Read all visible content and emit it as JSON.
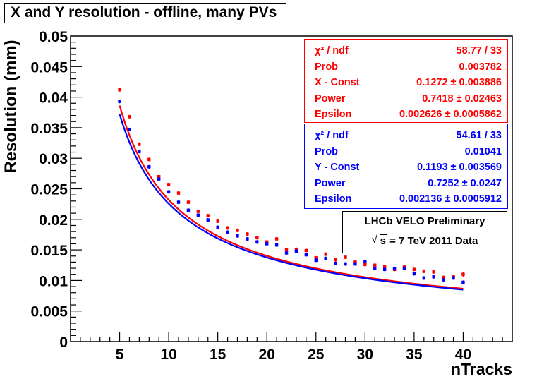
{
  "chart_data": {
    "type": "scatter",
    "title": "X and Y resolution - offline, many PVs",
    "xlabel": "nTracks",
    "ylabel": "Resolution (mm)",
    "xlim": [
      0,
      45
    ],
    "ylim": [
      0,
      0.05
    ],
    "x_ticks": [
      5,
      10,
      15,
      20,
      25,
      30,
      35,
      40
    ],
    "x_tick_labels": [
      "5",
      "10",
      "15",
      "20",
      "25",
      "30",
      "35",
      "40"
    ],
    "y_ticks": [
      0,
      0.005,
      0.01,
      0.015,
      0.02,
      0.025,
      0.03,
      0.035,
      0.04,
      0.045,
      0.05
    ],
    "y_tick_labels": [
      "0",
      "0.005",
      "0.01",
      "0.015",
      "0.02",
      "0.025",
      "0.03",
      "0.035",
      "0.04",
      "0.045",
      "0.05"
    ],
    "series": [
      {
        "name": "X",
        "color": "#ff0000",
        "x": [
          5,
          6,
          7,
          8,
          9,
          10,
          11,
          12,
          13,
          14,
          15,
          16,
          17,
          18,
          19,
          20,
          21,
          22,
          23,
          24,
          25,
          26,
          27,
          28,
          29,
          30,
          31,
          32,
          33,
          34,
          35,
          36,
          37,
          38,
          39,
          40
        ],
        "y": [
          0.0412,
          0.0368,
          0.0323,
          0.0298,
          0.027,
          0.0257,
          0.0243,
          0.0228,
          0.0213,
          0.0206,
          0.0197,
          0.0186,
          0.0182,
          0.0176,
          0.017,
          0.0163,
          0.0168,
          0.015,
          0.0151,
          0.0149,
          0.0137,
          0.0143,
          0.0134,
          0.0138,
          0.013,
          0.0126,
          0.0125,
          0.0123,
          0.0118,
          0.0122,
          0.0118,
          0.0115,
          0.0114,
          0.0105,
          0.0106,
          0.011
        ],
        "err": [
          0.0003,
          0.0003,
          0.0003,
          0.0003,
          0.0003,
          0.0003,
          0.0003,
          0.0003,
          0.0003,
          0.0003,
          0.0003,
          0.0003,
          0.0003,
          0.0003,
          0.0003,
          0.0003,
          0.0003,
          0.0003,
          0.0003,
          0.0003,
          0.0003,
          0.0003,
          0.0003,
          0.0003,
          0.0003,
          0.0003,
          0.0003,
          0.0003,
          0.0003,
          0.0003,
          0.0003,
          0.0003,
          0.0003,
          0.0003,
          0.0003,
          0.0004
        ],
        "fit": {
          "const": 0.1272,
          "power": 0.7418,
          "epsilon": 0.002626
        }
      },
      {
        "name": "Y",
        "color": "#0000ff",
        "x": [
          5,
          6,
          7,
          8,
          9,
          10,
          11,
          12,
          13,
          14,
          15,
          16,
          17,
          18,
          19,
          20,
          21,
          22,
          23,
          24,
          25,
          26,
          27,
          28,
          29,
          30,
          31,
          32,
          33,
          34,
          35,
          36,
          37,
          38,
          39,
          40
        ],
        "y": [
          0.0393,
          0.0347,
          0.0311,
          0.0286,
          0.0266,
          0.0245,
          0.0228,
          0.0215,
          0.0207,
          0.0199,
          0.0187,
          0.0179,
          0.0173,
          0.0168,
          0.0163,
          0.016,
          0.0158,
          0.0145,
          0.0148,
          0.0142,
          0.0133,
          0.0136,
          0.0128,
          0.0127,
          0.0127,
          0.0131,
          0.012,
          0.0118,
          0.0119,
          0.012,
          0.0111,
          0.0104,
          0.0106,
          0.0101,
          0.0104,
          0.0097
        ],
        "err": [
          0.0003,
          0.0003,
          0.0003,
          0.0003,
          0.0003,
          0.0003,
          0.0003,
          0.0003,
          0.0003,
          0.0003,
          0.0003,
          0.0003,
          0.0003,
          0.0003,
          0.0003,
          0.0003,
          0.0003,
          0.0003,
          0.0003,
          0.0003,
          0.0003,
          0.0003,
          0.0003,
          0.0003,
          0.0003,
          0.0003,
          0.0003,
          0.0003,
          0.0003,
          0.0003,
          0.0003,
          0.0003,
          0.0003,
          0.0003,
          0.0003,
          0.0003
        ],
        "fit": {
          "const": 0.1193,
          "power": 0.7252,
          "epsilon": 0.002136
        }
      }
    ],
    "fit_x_range": [
      5,
      40
    ]
  },
  "stats_x": {
    "color": "#ff0000",
    "rows": [
      {
        "key": "χ² / ndf",
        "value": "58.77 / 33"
      },
      {
        "key": "Prob",
        "value": "0.003782"
      },
      {
        "key": "X - Const",
        "value": "0.1272 ± 0.003886"
      },
      {
        "key": "Power",
        "value": "0.7418 ± 0.02463"
      },
      {
        "key": "Epsilon",
        "value": "0.002626 ± 0.0005862"
      }
    ]
  },
  "stats_y": {
    "color": "#0000ff",
    "rows": [
      {
        "key": "χ² / ndf",
        "value": "54.61 / 33"
      },
      {
        "key": "Prob",
        "value": "0.01041"
      },
      {
        "key": "Y - Const",
        "value": "0.1193 ± 0.003569"
      },
      {
        "key": "Power",
        "value": "0.7252 ± 0.0247"
      },
      {
        "key": "Epsilon",
        "value": "0.002136 ± 0.0005912"
      }
    ]
  },
  "legend": {
    "line1": "LHCb VELO Preliminary",
    "sqrt_symbol": "√",
    "sqrt_arg": "s",
    "line2_rest": " = 7 TeV 2011 Data"
  }
}
